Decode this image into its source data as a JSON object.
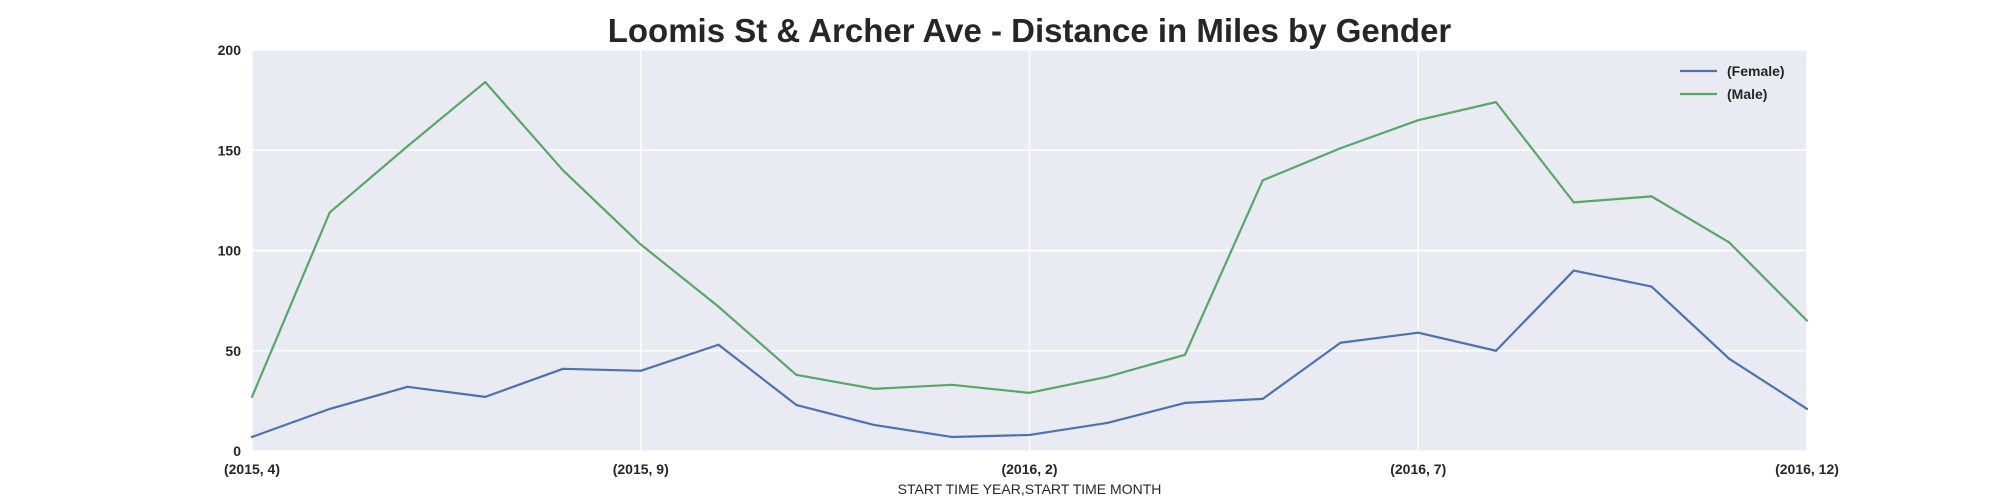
{
  "chart_data": {
    "type": "line",
    "title": "Loomis St & Archer Ave - Distance in Miles by Gender",
    "xlabel": "START TIME YEAR,START TIME MONTH",
    "ylabel": "",
    "categories": [
      "(2015, 4)",
      "(2015, 5)",
      "(2015, 6)",
      "(2015, 7)",
      "(2015, 8)",
      "(2015, 9)",
      "(2015, 10)",
      "(2015, 11)",
      "(2015, 12)",
      "(2016, 1)",
      "(2016, 2)",
      "(2016, 3)",
      "(2016, 4)",
      "(2016, 5)",
      "(2016, 6)",
      "(2016, 7)",
      "(2016, 8)",
      "(2016, 9)",
      "(2016, 10)",
      "(2016, 11)",
      "(2016, 12)"
    ],
    "x_tick_labels": [
      "(2015, 4)",
      "(2015, 9)",
      "(2016, 2)",
      "(2016, 7)",
      "(2016, 12)"
    ],
    "y_ticks": [
      0,
      50,
      100,
      150,
      200
    ],
    "ylim": [
      0,
      200
    ],
    "grid": true,
    "background": "#eaeaf2",
    "legend_position": "upper right",
    "series": [
      {
        "name": "(Female)",
        "color": "#4c72b0",
        "values": [
          7,
          21,
          32,
          27,
          41,
          40,
          53,
          23,
          13,
          7,
          8,
          14,
          24,
          26,
          54,
          59,
          50,
          90,
          82,
          46,
          21
        ]
      },
      {
        "name": "(Male)",
        "color": "#55a868",
        "values": [
          27,
          119,
          152,
          184,
          140,
          103,
          72,
          38,
          31,
          33,
          29,
          37,
          48,
          135,
          151,
          165,
          174,
          124,
          127,
          104,
          65
        ]
      }
    ]
  }
}
